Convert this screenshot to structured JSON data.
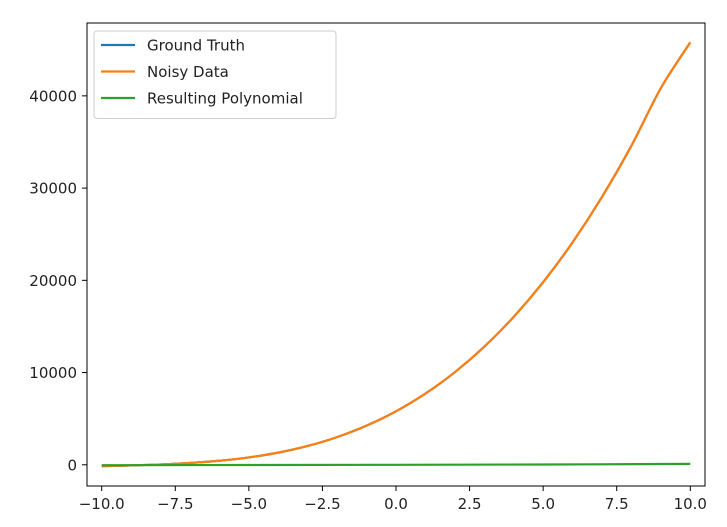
{
  "chart_data": {
    "type": "line",
    "title": "",
    "xlabel": "",
    "ylabel": "",
    "xlim": [
      -10.5,
      10.5
    ],
    "ylim": [
      -2300,
      47900
    ],
    "grid": false,
    "legend_position": "top-left",
    "x_ticks": [
      -10.0,
      -7.5,
      -5.0,
      -2.5,
      0.0,
      2.5,
      5.0,
      7.5,
      10.0
    ],
    "x_tick_labels": [
      "−10.0",
      "−7.5",
      "−5.0",
      "−2.5",
      "0.0",
      "2.5",
      "5.0",
      "7.5",
      "10.0"
    ],
    "y_ticks": [
      0,
      10000,
      20000,
      30000,
      40000
    ],
    "y_tick_labels": [
      "0",
      "10000",
      "20000",
      "30000",
      "40000"
    ],
    "series": [
      {
        "name": "Ground Truth",
        "color": "#1f77b4",
        "x": [
          -10,
          -9,
          -8,
          -7,
          -6,
          -5,
          -4,
          -3,
          -2,
          -1,
          0,
          1,
          2,
          3,
          4,
          5,
          6,
          7,
          8,
          9,
          10
        ],
        "values": [
          -150,
          -70,
          40,
          200,
          440,
          800,
          1320,
          2040,
          3000,
          4240,
          5800,
          7720,
          10040,
          12800,
          16040,
          19800,
          24120,
          29040,
          34600,
          40840,
          45800
        ]
      },
      {
        "name": "Noisy Data",
        "color": "#ff7f0e",
        "x": [
          -10,
          -9,
          -8,
          -7,
          -6,
          -5,
          -4,
          -3,
          -2,
          -1,
          0,
          1,
          2,
          3,
          4,
          5,
          6,
          7,
          8,
          9,
          10
        ],
        "values": [
          -150,
          -70,
          40,
          200,
          440,
          800,
          1320,
          2040,
          3000,
          4240,
          5800,
          7720,
          10040,
          12800,
          16040,
          19800,
          24120,
          29040,
          34600,
          40840,
          45800
        ]
      },
      {
        "name": "Resulting Polynomial",
        "color": "#2ca02c",
        "x": [
          -10,
          -5,
          0,
          5,
          10
        ],
        "values": [
          -50,
          -20,
          0,
          30,
          100
        ]
      }
    ]
  }
}
